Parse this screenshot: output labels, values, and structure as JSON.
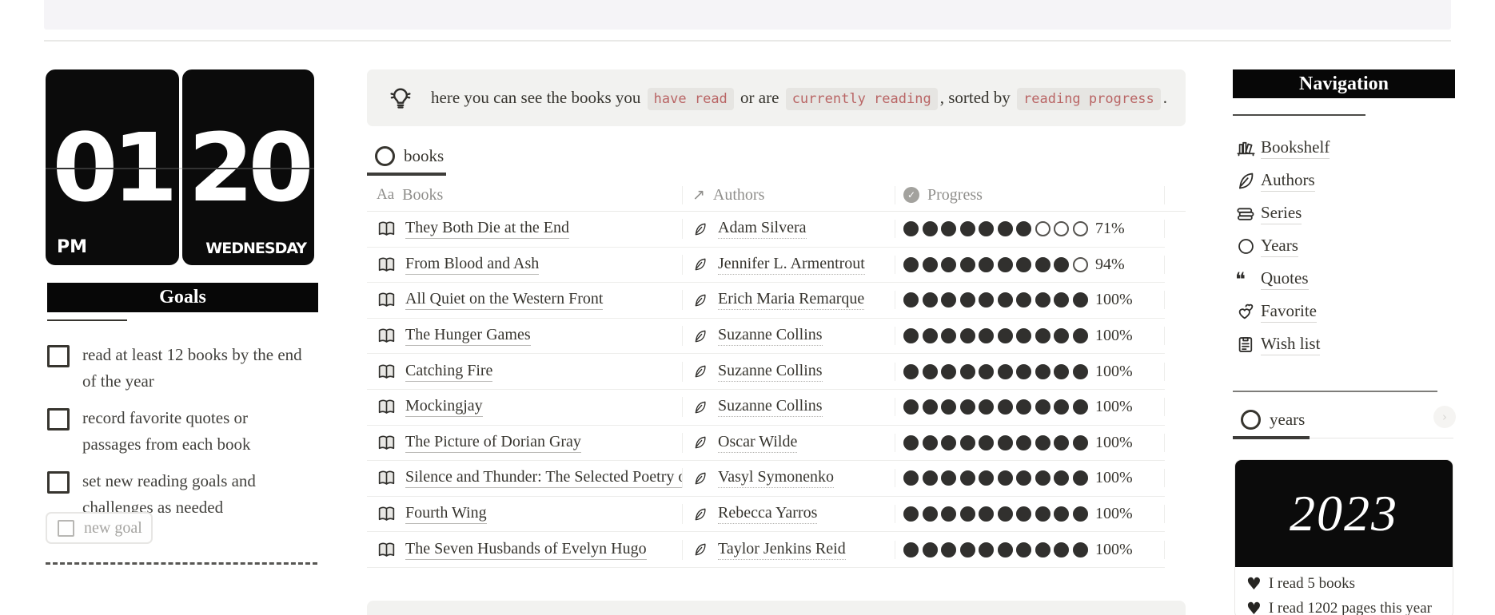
{
  "clock": {
    "hour": "01",
    "minute": "20",
    "ampm": "PM",
    "weekday": "WEDNESDAY"
  },
  "goals": {
    "title": "Goals",
    "items": [
      "read at least 12 books by the end of the year",
      "record favorite quotes or passages from each book",
      "set new reading goals and challenges as needed"
    ],
    "new_goal_label": "new goal"
  },
  "callout": {
    "icon": "lightbulb-icon",
    "part1": "here you can see the books you ",
    "code1": "have read",
    "part2": " or are ",
    "code2": "currently reading",
    "part3": ", sorted by ",
    "code3": "reading progress",
    "part4": "."
  },
  "books_tab": {
    "label": "books"
  },
  "table": {
    "headers": {
      "books": "Books",
      "authors": "Authors",
      "progress": "Progress",
      "aa_glyph": "Aa",
      "arrow_glyph": "↗",
      "check_glyph": "✓"
    },
    "rows": [
      {
        "title": "They Both Die at the End",
        "author": "Adam Silvera",
        "percent": 71
      },
      {
        "title": "From Blood and Ash",
        "author": "Jennifer L. Armentrout",
        "percent": 94
      },
      {
        "title": "All Quiet on the Western Front",
        "author": "Erich Maria Remarque",
        "percent": 100
      },
      {
        "title": "The Hunger Games",
        "author": "Suzanne Collins",
        "percent": 100
      },
      {
        "title": "Catching Fire",
        "author": "Suzanne Collins",
        "percent": 100
      },
      {
        "title": "Mockingjay",
        "author": "Suzanne Collins",
        "percent": 100
      },
      {
        "title": "The Picture of Dorian Gray",
        "author": "Oscar Wilde",
        "percent": 100
      },
      {
        "title": "Silence and Thunder: The Selected Poetry o",
        "author": "Vasyl Symonenko",
        "percent": 100
      },
      {
        "title": "Fourth Wing",
        "author": "Rebecca Yarros",
        "percent": 100
      },
      {
        "title": "The Seven Husbands of Evelyn Hugo",
        "author": "Taylor Jenkins Reid",
        "percent": 100
      }
    ],
    "dots_total": 10
  },
  "navigation": {
    "title": "Navigation",
    "items": [
      {
        "label": "Bookshelf",
        "icon": "bookshelf-icon"
      },
      {
        "label": "Authors",
        "icon": "quill-icon"
      },
      {
        "label": "Series",
        "icon": "book-stack-icon"
      },
      {
        "label": "Years",
        "icon": "circle-icon"
      },
      {
        "label": "Quotes",
        "icon": "quotes-icon"
      },
      {
        "label": "Favorite",
        "icon": "hearts-icon"
      },
      {
        "label": "Wish list",
        "icon": "wishlist-icon"
      }
    ]
  },
  "years_tab": {
    "label": "years"
  },
  "year_card": {
    "year": "2023",
    "stats": [
      {
        "icon": "heart-icon",
        "text": "I read 5 books"
      },
      {
        "icon": "heart-icon",
        "text": "I read 1202 pages this year"
      }
    ]
  },
  "colors": {
    "accent_black": "#0b0b0b",
    "code_red": "#b96565",
    "callout_bg": "#f2f2f0"
  }
}
